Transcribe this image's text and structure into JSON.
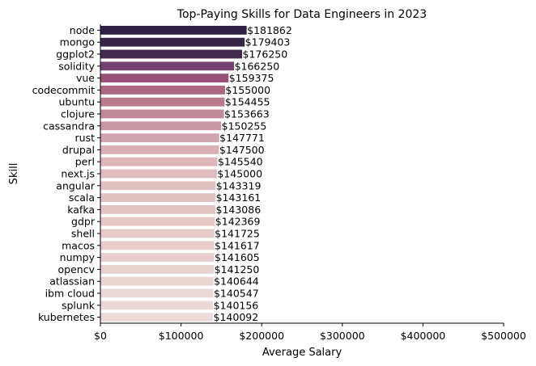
{
  "chart_data": {
    "type": "bar",
    "orientation": "horizontal",
    "title": "Top-Paying Skills for Data Engineers in 2023",
    "xlabel": "Average Salary",
    "ylabel": "Skill",
    "xlim": [
      0,
      500000
    ],
    "xticks": [
      0,
      100000,
      200000,
      300000,
      400000,
      500000
    ],
    "xtick_labels": [
      "$0",
      "$100000",
      "$200000",
      "$300000",
      "$400000",
      "$500000"
    ],
    "grid": false,
    "legend": "none",
    "categories": [
      "node",
      "mongo",
      "ggplot2",
      "solidity",
      "vue",
      "codecommit",
      "ubuntu",
      "clojure",
      "cassandra",
      "rust",
      "drupal",
      "perl",
      "next.js",
      "angular",
      "scala",
      "kafka",
      "gdpr",
      "shell",
      "macos",
      "numpy",
      "opencv",
      "atlassian",
      "ibm cloud",
      "splunk",
      "kubernetes"
    ],
    "values": [
      181862,
      179403,
      176250,
      166250,
      159375,
      155000,
      154455,
      153663,
      150255,
      147771,
      147500,
      145540,
      145000,
      143319,
      143161,
      143086,
      142369,
      141725,
      141617,
      141605,
      141250,
      140644,
      140547,
      140156,
      140092
    ],
    "value_labels": [
      "$181862",
      "$179403",
      "$176250",
      "$166250",
      "$159375",
      "$155000",
      "$154455",
      "$153663",
      "$150255",
      "$147771",
      "$147500",
      "$145540",
      "$145000",
      "$143319",
      "$143161",
      "$143086",
      "$142369",
      "$141725",
      "$141617",
      "$141605",
      "$141250",
      "$140644",
      "$140547",
      "$140156",
      "$140092"
    ],
    "colors": [
      "#2d2143",
      "#372547",
      "#43294e",
      "#754270",
      "#995277",
      "#ab6682",
      "#b77b8b",
      "#c08b98",
      "#c898a6",
      "#d0a4ae",
      "#d9b0b5",
      "#ddb6b9",
      "#e0bcbe",
      "#e1c0c1",
      "#e2c3c3",
      "#e3c4c4",
      "#e5c7c6",
      "#e6cac8",
      "#e7cccb",
      "#e8cfcd",
      "#e9d2d0",
      "#ead5d3",
      "#ebd7d5",
      "#ecd9d7",
      "#eddbd9"
    ]
  }
}
